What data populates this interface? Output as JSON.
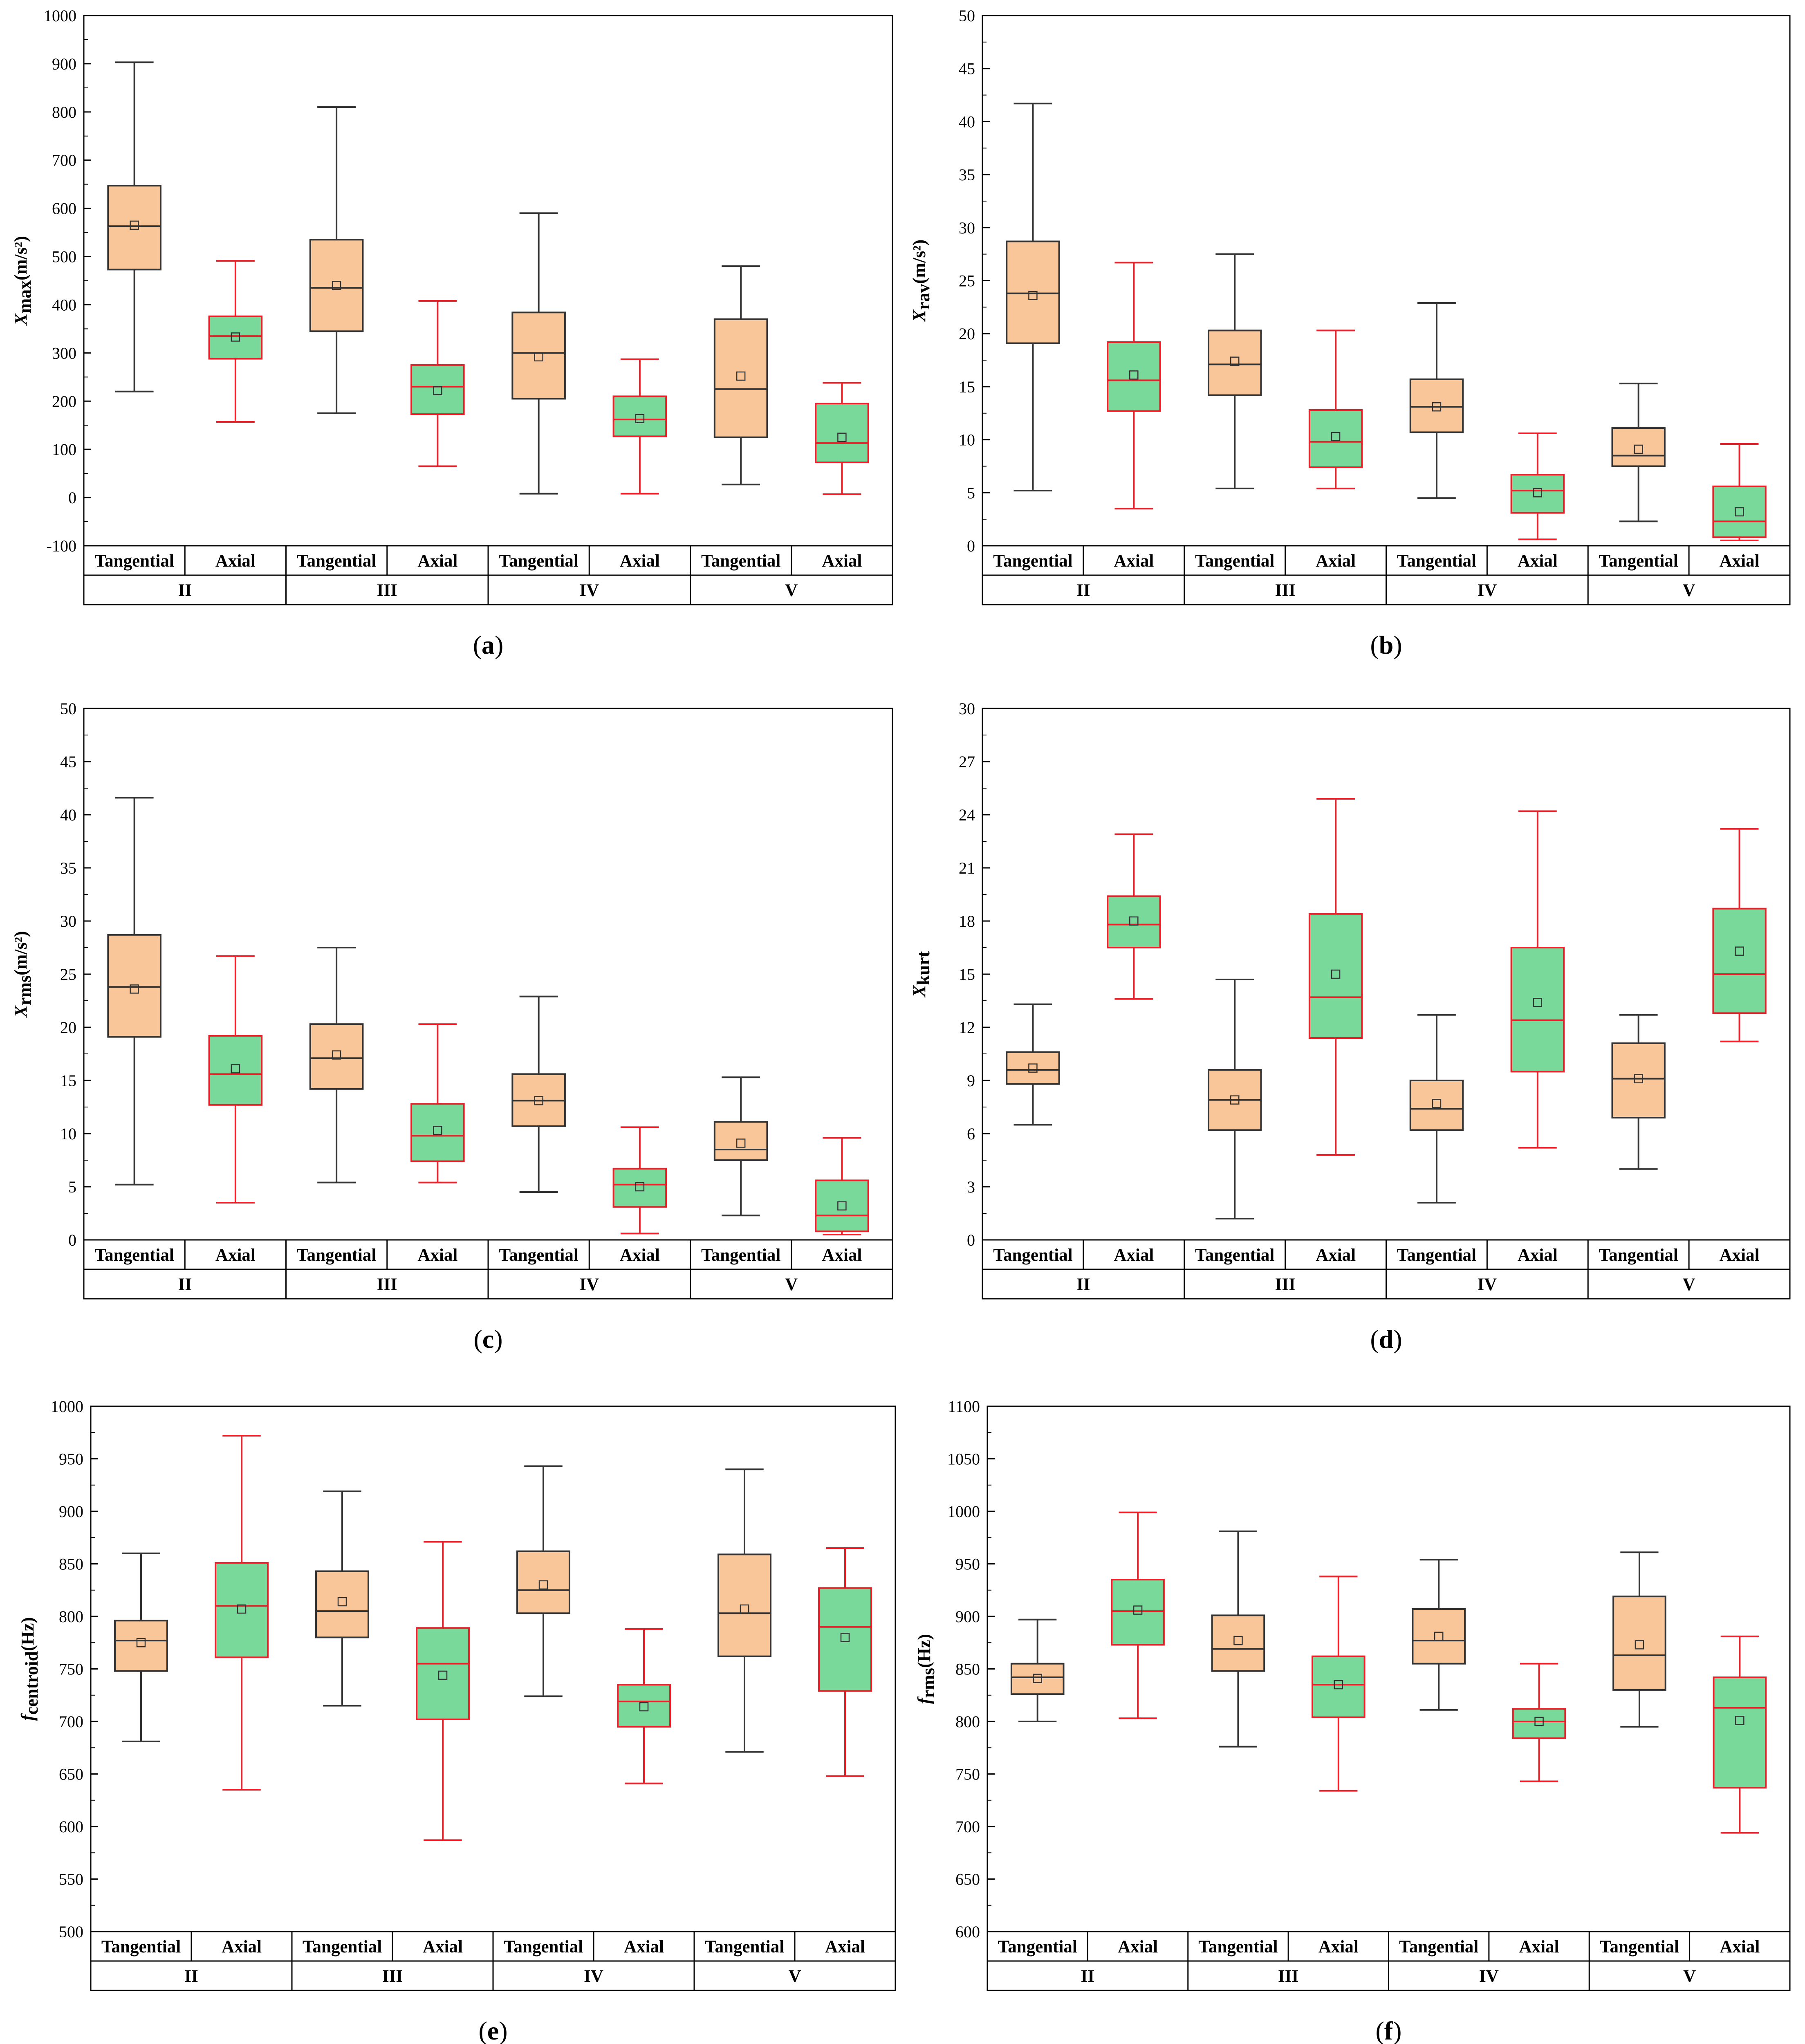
{
  "colors": {
    "tangential_fill": "#F9C69A",
    "axial_fill": "#78D99A",
    "tangential_stroke": "#333333",
    "axial_stroke": "#E8202A",
    "axis": "#000000"
  },
  "chart_data": [
    {
      "id": "a",
      "type": "box",
      "caption_label": "a",
      "ylabel": {
        "main": "X",
        "sub": "max",
        "unit": "(m/s²)"
      },
      "ylim": [
        -100,
        1000
      ],
      "yticks": [
        "-100",
        "0",
        "100",
        "200",
        "300",
        "400",
        "500",
        "600",
        "700",
        "800",
        "900",
        "1000"
      ],
      "row1": [
        "Tangential",
        "Axial",
        "Tangential",
        "Axial",
        "Tangential",
        "Axial",
        "Tangential",
        "Axial"
      ],
      "row2": [
        "II",
        "III",
        "IV",
        "V"
      ],
      "boxes": [
        {
          "label": "Tangential",
          "group": "II",
          "whisker_low": 220,
          "q1": 473,
          "median": 563,
          "q3": 647,
          "whisker_high": 903,
          "mean": 565
        },
        {
          "label": "Axial",
          "group": "II",
          "whisker_low": 157,
          "q1": 288,
          "median": 335,
          "q3": 376,
          "whisker_high": 491,
          "mean": 333
        },
        {
          "label": "Tangential",
          "group": "III",
          "whisker_low": 175,
          "q1": 345,
          "median": 435,
          "q3": 535,
          "whisker_high": 810,
          "mean": 440
        },
        {
          "label": "Axial",
          "group": "III",
          "whisker_low": 65,
          "q1": 173,
          "median": 230,
          "q3": 275,
          "whisker_high": 408,
          "mean": 222
        },
        {
          "label": "Tangential",
          "group": "IV",
          "whisker_low": 8,
          "q1": 205,
          "median": 300,
          "q3": 384,
          "whisker_high": 590,
          "mean": 292
        },
        {
          "label": "Axial",
          "group": "IV",
          "whisker_low": 8,
          "q1": 127,
          "median": 162,
          "q3": 210,
          "whisker_high": 287,
          "mean": 164
        },
        {
          "label": "Tangential",
          "group": "V",
          "whisker_low": 27,
          "q1": 125,
          "median": 225,
          "q3": 370,
          "whisker_high": 480,
          "mean": 252
        },
        {
          "label": "Axial",
          "group": "V",
          "whisker_low": 7,
          "q1": 73,
          "median": 113,
          "q3": 195,
          "whisker_high": 238,
          "mean": 125
        }
      ]
    },
    {
      "id": "b",
      "type": "box",
      "caption_label": "b",
      "ylabel": {
        "main": "X",
        "sub": "rav",
        "unit": "(m/s²)"
      },
      "ylim": [
        0,
        50
      ],
      "yticks": [
        "0",
        "5",
        "10",
        "15",
        "20",
        "25",
        "30",
        "35",
        "40",
        "45",
        "50"
      ],
      "row1": [
        "Tangential",
        "Axial",
        "Tangential",
        "Axial",
        "Tangential",
        "Axial",
        "Tangential",
        "Axial"
      ],
      "row2": [
        "II",
        "III",
        "IV",
        "V"
      ],
      "boxes": [
        {
          "label": "Tangential",
          "group": "II",
          "whisker_low": 5.2,
          "q1": 19.1,
          "median": 23.8,
          "q3": 28.7,
          "whisker_high": 41.7,
          "mean": 23.6
        },
        {
          "label": "Axial",
          "group": "II",
          "whisker_low": 3.5,
          "q1": 12.7,
          "median": 15.6,
          "q3": 19.2,
          "whisker_high": 26.7,
          "mean": 16.1
        },
        {
          "label": "Tangential",
          "group": "III",
          "whisker_low": 5.4,
          "q1": 14.2,
          "median": 17.1,
          "q3": 20.3,
          "whisker_high": 27.5,
          "mean": 17.4
        },
        {
          "label": "Axial",
          "group": "III",
          "whisker_low": 5.4,
          "q1": 7.4,
          "median": 9.8,
          "q3": 12.8,
          "whisker_high": 20.3,
          "mean": 10.3
        },
        {
          "label": "Tangential",
          "group": "IV",
          "whisker_low": 4.5,
          "q1": 10.7,
          "median": 13.1,
          "q3": 15.7,
          "whisker_high": 22.9,
          "mean": 13.1
        },
        {
          "label": "Axial",
          "group": "IV",
          "whisker_low": 0.6,
          "q1": 3.1,
          "median": 5.2,
          "q3": 6.7,
          "whisker_high": 10.6,
          "mean": 5.0
        },
        {
          "label": "Tangential",
          "group": "V",
          "whisker_low": 2.3,
          "q1": 7.5,
          "median": 8.5,
          "q3": 11.1,
          "whisker_high": 15.3,
          "mean": 9.1
        },
        {
          "label": "Axial",
          "group": "V",
          "whisker_low": 0.5,
          "q1": 0.8,
          "median": 2.3,
          "q3": 5.6,
          "whisker_high": 9.6,
          "mean": 3.2
        }
      ]
    },
    {
      "id": "c",
      "type": "box",
      "caption_label": "c",
      "ylabel": {
        "main": "X",
        "sub": "rms",
        "unit": "(m/s²)"
      },
      "ylim": [
        0,
        50
      ],
      "yticks": [
        "0",
        "5",
        "10",
        "15",
        "20",
        "25",
        "30",
        "35",
        "40",
        "45",
        "50"
      ],
      "row1": [
        "Tangential",
        "Axial",
        "Tangential",
        "Axial",
        "Tangential",
        "Axial",
        "Tangential",
        "Axial"
      ],
      "row2": [
        "II",
        "III",
        "IV",
        "V"
      ],
      "boxes": [
        {
          "label": "Tangential",
          "group": "II",
          "whisker_low": 5.2,
          "q1": 19.1,
          "median": 23.8,
          "q3": 28.7,
          "whisker_high": 41.6,
          "mean": 23.6
        },
        {
          "label": "Axial",
          "group": "II",
          "whisker_low": 3.5,
          "q1": 12.7,
          "median": 15.6,
          "q3": 19.2,
          "whisker_high": 26.7,
          "mean": 16.1
        },
        {
          "label": "Tangential",
          "group": "III",
          "whisker_low": 5.4,
          "q1": 14.2,
          "median": 17.1,
          "q3": 20.3,
          "whisker_high": 27.5,
          "mean": 17.4
        },
        {
          "label": "Axial",
          "group": "III",
          "whisker_low": 5.4,
          "q1": 7.4,
          "median": 9.8,
          "q3": 12.8,
          "whisker_high": 20.3,
          "mean": 10.3
        },
        {
          "label": "Tangential",
          "group": "IV",
          "whisker_low": 4.5,
          "q1": 10.7,
          "median": 13.1,
          "q3": 15.6,
          "whisker_high": 22.9,
          "mean": 13.1
        },
        {
          "label": "Axial",
          "group": "IV",
          "whisker_low": 0.6,
          "q1": 3.1,
          "median": 5.2,
          "q3": 6.7,
          "whisker_high": 10.6,
          "mean": 5.0
        },
        {
          "label": "Tangential",
          "group": "V",
          "whisker_low": 2.3,
          "q1": 7.5,
          "median": 8.5,
          "q3": 11.1,
          "whisker_high": 15.3,
          "mean": 9.1
        },
        {
          "label": "Axial",
          "group": "V",
          "whisker_low": 0.5,
          "q1": 0.8,
          "median": 2.3,
          "q3": 5.6,
          "whisker_high": 9.6,
          "mean": 3.2
        }
      ]
    },
    {
      "id": "d",
      "type": "box",
      "caption_label": "d",
      "ylabel": {
        "main": "X",
        "sub": "kurt",
        "unit": ""
      },
      "ylim": [
        0,
        30
      ],
      "yticks": [
        "0",
        "3",
        "6",
        "9",
        "12",
        "15",
        "18",
        "21",
        "24",
        "27",
        "30"
      ],
      "row1": [
        "Tangential",
        "Axial",
        "Tangential",
        "Axial",
        "Tangential",
        "Axial",
        "Tangential",
        "Axial"
      ],
      "row2": [
        "II",
        "III",
        "IV",
        "V"
      ],
      "boxes": [
        {
          "label": "Tangential",
          "group": "II",
          "whisker_low": 6.5,
          "q1": 8.8,
          "median": 9.6,
          "q3": 10.6,
          "whisker_high": 13.3,
          "mean": 9.7
        },
        {
          "label": "Axial",
          "group": "II",
          "whisker_low": 13.6,
          "q1": 16.5,
          "median": 17.8,
          "q3": 19.4,
          "whisker_high": 22.9,
          "mean": 18.0
        },
        {
          "label": "Tangential",
          "group": "III",
          "whisker_low": 1.2,
          "q1": 6.2,
          "median": 7.9,
          "q3": 9.6,
          "whisker_high": 14.7,
          "mean": 7.9
        },
        {
          "label": "Axial",
          "group": "III",
          "whisker_low": 4.8,
          "q1": 11.4,
          "median": 13.7,
          "q3": 18.4,
          "whisker_high": 24.9,
          "mean": 15.0
        },
        {
          "label": "Tangential",
          "group": "IV",
          "whisker_low": 2.1,
          "q1": 6.2,
          "median": 7.4,
          "q3": 9.0,
          "whisker_high": 12.7,
          "mean": 7.7
        },
        {
          "label": "Axial",
          "group": "IV",
          "whisker_low": 5.2,
          "q1": 9.5,
          "median": 12.4,
          "q3": 16.5,
          "whisker_high": 24.2,
          "mean": 13.4
        },
        {
          "label": "Tangential",
          "group": "V",
          "whisker_low": 4.0,
          "q1": 6.9,
          "median": 9.1,
          "q3": 11.1,
          "whisker_high": 12.7,
          "mean": 9.1
        },
        {
          "label": "Axial",
          "group": "V",
          "whisker_low": 11.2,
          "q1": 12.8,
          "median": 15.0,
          "q3": 18.7,
          "whisker_high": 23.2,
          "mean": 16.3
        }
      ]
    },
    {
      "id": "e",
      "type": "box",
      "caption_label": "e",
      "ylabel": {
        "main": "f",
        "sub": "centroid",
        "unit": "(Hz)"
      },
      "ylim": [
        500,
        1000
      ],
      "yticks": [
        "500",
        "550",
        "600",
        "650",
        "700",
        "750",
        "800",
        "850",
        "900",
        "950",
        "1000"
      ],
      "row1": [
        "Tangential",
        "Axial",
        "Tangential",
        "Axial",
        "Tangential",
        "Axial",
        "Tangential",
        "Axial"
      ],
      "row2": [
        "II",
        "III",
        "IV",
        "V"
      ],
      "boxes": [
        {
          "label": "Tangential",
          "group": "II",
          "whisker_low": 681,
          "q1": 748,
          "median": 777,
          "q3": 796,
          "whisker_high": 860,
          "mean": 775
        },
        {
          "label": "Axial",
          "group": "II",
          "whisker_low": 635,
          "q1": 761,
          "median": 810,
          "q3": 851,
          "whisker_high": 972,
          "mean": 807
        },
        {
          "label": "Tangential",
          "group": "III",
          "whisker_low": 715,
          "q1": 780,
          "median": 805,
          "q3": 843,
          "whisker_high": 919,
          "mean": 814
        },
        {
          "label": "Axial",
          "group": "III",
          "whisker_low": 587,
          "q1": 702,
          "median": 755,
          "q3": 789,
          "whisker_high": 871,
          "mean": 744
        },
        {
          "label": "Tangential",
          "group": "IV",
          "whisker_low": 724,
          "q1": 803,
          "median": 825,
          "q3": 862,
          "whisker_high": 943,
          "mean": 830
        },
        {
          "label": "Axial",
          "group": "IV",
          "whisker_low": 641,
          "q1": 695,
          "median": 719,
          "q3": 735,
          "whisker_high": 788,
          "mean": 714
        },
        {
          "label": "Tangential",
          "group": "V",
          "whisker_low": 671,
          "q1": 762,
          "median": 803,
          "q3": 859,
          "whisker_high": 940,
          "mean": 807
        },
        {
          "label": "Axial",
          "group": "V",
          "whisker_low": 648,
          "q1": 729,
          "median": 790,
          "q3": 827,
          "whisker_high": 865,
          "mean": 780
        }
      ]
    },
    {
      "id": "f",
      "type": "box",
      "caption_label": "f",
      "ylabel": {
        "main": "f",
        "sub": "rms",
        "unit": "(Hz)"
      },
      "ylim": [
        600,
        1100
      ],
      "yticks": [
        "600",
        "650",
        "700",
        "750",
        "800",
        "850",
        "900",
        "950",
        "1000",
        "1050",
        "1100"
      ],
      "row1": [
        "Tangential",
        "Axial",
        "Tangential",
        "Axial",
        "Tangential",
        "Axial",
        "Tangential",
        "Axial"
      ],
      "row2": [
        "II",
        "III",
        "IV",
        "V"
      ],
      "boxes": [
        {
          "label": "Tangential",
          "group": "II",
          "whisker_low": 800,
          "q1": 826,
          "median": 842,
          "q3": 855,
          "whisker_high": 897,
          "mean": 841
        },
        {
          "label": "Axial",
          "group": "II",
          "whisker_low": 803,
          "q1": 873,
          "median": 905,
          "q3": 935,
          "whisker_high": 999,
          "mean": 906
        },
        {
          "label": "Tangential",
          "group": "III",
          "whisker_low": 776,
          "q1": 848,
          "median": 869,
          "q3": 901,
          "whisker_high": 981,
          "mean": 877
        },
        {
          "label": "Axial",
          "group": "III",
          "whisker_low": 734,
          "q1": 804,
          "median": 835,
          "q3": 862,
          "whisker_high": 938,
          "mean": 835
        },
        {
          "label": "Tangential",
          "group": "IV",
          "whisker_low": 811,
          "q1": 855,
          "median": 877,
          "q3": 907,
          "whisker_high": 954,
          "mean": 881
        },
        {
          "label": "Axial",
          "group": "IV",
          "whisker_low": 743,
          "q1": 784,
          "median": 800,
          "q3": 812,
          "whisker_high": 855,
          "mean": 800
        },
        {
          "label": "Tangential",
          "group": "V",
          "whisker_low": 795,
          "q1": 830,
          "median": 863,
          "q3": 919,
          "whisker_high": 961,
          "mean": 873
        },
        {
          "label": "Axial",
          "group": "V",
          "whisker_low": 694,
          "q1": 737,
          "median": 813,
          "q3": 842,
          "whisker_high": 881,
          "mean": 801
        }
      ]
    }
  ]
}
